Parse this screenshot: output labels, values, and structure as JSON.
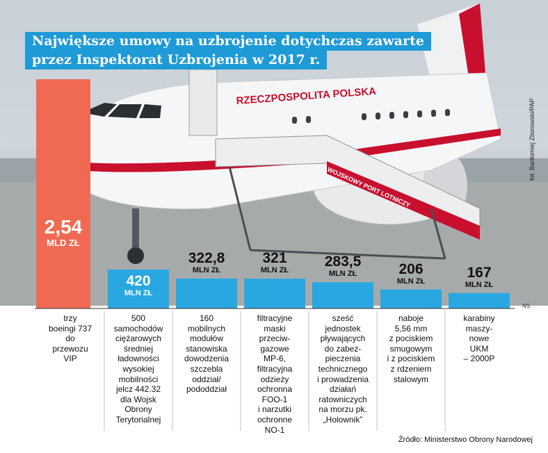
{
  "title_lines": [
    "Największe umowy na uzbrojenie dotychczas zawarte",
    "przez Inspektorat Uzbrojenia w 2017 r."
  ],
  "photo_credit": "fot. Bartłomiej Zborowski/PAP",
  "plane_lettering": {
    "fuselage": "RZECZPOSPOLITA POLSKA",
    "stairs": "WOJSKOWY PORT LOTNICZY"
  },
  "unit_note": "NS",
  "source": "Źródło: Ministerstwo Obrony Narodowej",
  "colors": {
    "title_bg": "#1e9ad6",
    "highlight_bar": "#f06a53",
    "bars": "#29a7e1",
    "plane_red": "#c8102e"
  },
  "chart_data": {
    "type": "bar",
    "unit": "mln zł",
    "categories": [
      "trzy boeingi 737 do przewozu VIP",
      "500 samochodów ciężarowych średniej ładowności wysokiej mobilności jelcz 442.32 dla Wojsk Obrony Terytorialnej",
      "160 mobilnych modułów stanowiska dowodzenia szczebla oddział/pododdział",
      "filtracyjne maski przeciwgazowe MP-6, filtracyjna odzieży ochronna FOO-1 i narzutki ochronne NO-1",
      "sześć jednostek pływających do zabezpieczenia technicznego i prowadzenia działań ratowniczych na morzu pk. „Holownik”",
      "naboje 5,56 mm z pociskiem smugowym i z pociskiem z rdzeniem stalowym",
      "karabiny maszynowe UKM – 2000P"
    ],
    "values": [
      2540,
      420,
      322.8,
      321,
      283.5,
      206,
      167
    ],
    "labels": [
      {
        "number": "2,54",
        "unit": "MLD ZŁ"
      },
      {
        "number": "420",
        "unit": "MLN ZŁ"
      },
      {
        "number": "322,8",
        "unit": "MLN ZŁ"
      },
      {
        "number": "321",
        "unit": "MLN ZŁ"
      },
      {
        "number": "283,5",
        "unit": "MLN ZŁ"
      },
      {
        "number": "206",
        "unit": "MLN ZŁ"
      },
      {
        "number": "167",
        "unit": "MLN ZŁ"
      }
    ],
    "descriptions": [
      "trzy\nboeingi 737\ndo\nprzewozu\nVIP",
      "500\nsamochodów\nciężarowych\nśredniej\nładowności\nwysokiej\nmobilności\njelcz 442.32\ndla Wojsk\nObrony\nTerytorialnej",
      "160\nmobilnych\nmodułów\nstanowiska\ndowodzenia\nszczebla\noddział/\npododdział",
      "filtracyjne\nmaski\nprzeciw-\ngazowe\nMP-6,\nfiltracyjna\nodzieży\nochronna\nFOO-1\ni narzutki\nochronne\nNO-1",
      "sześć\njednostek\npływających\ndo zabez-\npieczenia\ntechnicznego\ni prowadzenia\ndziałań\nratowniczych\nna morzu pk.\n„Holownik”",
      "naboje\n5,56 mm\nz pociskiem\nsmugowym\ni z pociskiem\nz rdzeniem\nstalowym",
      "karabiny\nmaszy-\nnowe\nUKM\n– 2000P"
    ],
    "highlight_index": 0,
    "grid": false,
    "legend": "none"
  }
}
